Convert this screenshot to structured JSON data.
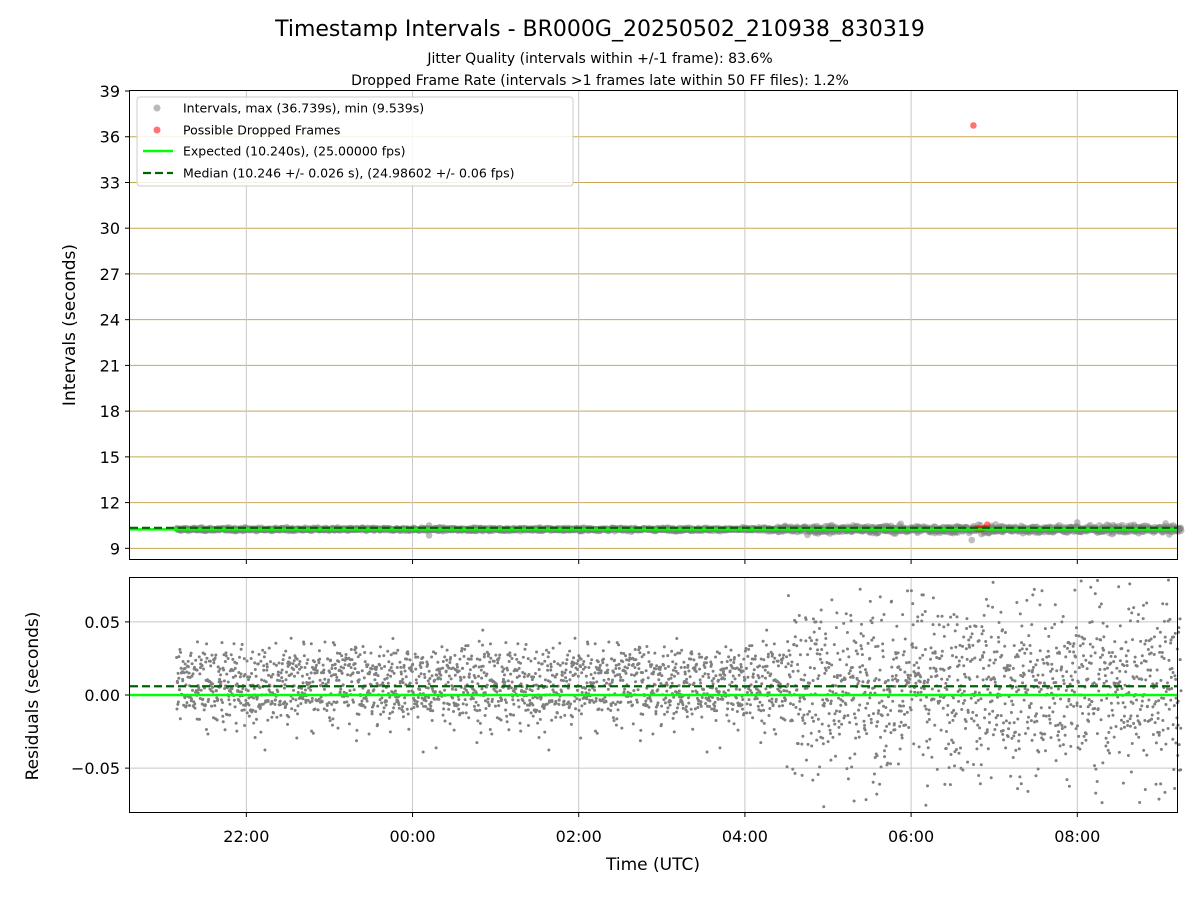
{
  "title": "Timestamp Intervals - BR000G_20250502_210938_830319",
  "subtitle_1": "Jitter Quality (intervals within +/-1 frame): 83.6%",
  "subtitle_2": "Dropped Frame Rate (intervals >1 frames late within 50 FF files): 1.2%",
  "colors": {
    "intervals": "#808080",
    "dropped": "#ff0000",
    "expected": "#00ff00",
    "median": "#006400",
    "hgrid_top": "#c8a850",
    "grid": "#c8c8c8"
  },
  "chart_data": [
    {
      "type": "scatter",
      "panel": "intervals",
      "ylabel": "Intervals (seconds)",
      "xlabel": "",
      "ylim": [
        8.3,
        39
      ],
      "yticks": [
        9,
        12,
        15,
        18,
        21,
        24,
        27,
        30,
        33,
        36,
        39
      ],
      "ytick_labels": [
        "9",
        "12",
        "15",
        "18",
        "21",
        "24",
        "27",
        "30",
        "33",
        "36",
        "39"
      ],
      "xlim_hours": [
        20.6,
        33.2
      ],
      "xticks_hours": [
        22,
        24,
        26,
        28,
        30,
        32
      ],
      "grid": true,
      "legend_position": "upper-left",
      "legend": [
        "Intervals, max (36.739s), min (9.539s)",
        "Possible Dropped Frames",
        "Expected (10.240s), (25.00000 fps)",
        "Median (10.246 +/- 0.026 s), (24.98602 +/- 0.06 fps)"
      ],
      "series": [
        {
          "name": "Intervals, max (36.739s), min (9.539s)",
          "kind": "points",
          "x_start": "21:09:38",
          "x_end": "09:15",
          "typical": 10.246,
          "max": 36.739,
          "min": 9.539
        },
        {
          "name": "Possible Dropped Frames",
          "kind": "points",
          "x": [
            "06:45",
            "06:47",
            "06:49",
            "06:51",
            "06:53",
            "06:55"
          ],
          "y": [
            36.74,
            10.28,
            10.3,
            10.27,
            10.32,
            10.55
          ]
        },
        {
          "name": "Expected (10.240s), (25.00000 fps)",
          "kind": "hline",
          "y": 10.24
        },
        {
          "name": "Median (10.246 +/- 0.026 s), (24.98602 +/- 0.06 fps)",
          "kind": "hline-dashed",
          "y": 10.246
        }
      ]
    },
    {
      "type": "scatter",
      "panel": "residuals",
      "ylabel": "Residuals (seconds)",
      "xlabel": "Time (UTC)",
      "ylim": [
        -0.08,
        0.08
      ],
      "yticks": [
        -0.05,
        0.0,
        0.05
      ],
      "ytick_labels": [
        "−0.05",
        "0.00",
        "0.05"
      ],
      "xlim_hours": [
        20.6,
        33.2
      ],
      "xticks_hours": [
        22,
        24,
        26,
        28,
        30,
        32
      ],
      "xtick_labels": [
        "22:00",
        "00:00",
        "02:00",
        "04:00",
        "06:00",
        "08:00"
      ],
      "grid": true,
      "series": [
        {
          "name": "",
          "kind": "points",
          "x_start": "21:09:38",
          "x_end": "09:15",
          "center": 0.006,
          "spread_before_0430": 0.02,
          "spread_after_0430": 0.04
        },
        {
          "name": "",
          "kind": "hline",
          "y": 0.0
        },
        {
          "name": "",
          "kind": "hline-dashed",
          "y": 0.006
        }
      ]
    }
  ]
}
